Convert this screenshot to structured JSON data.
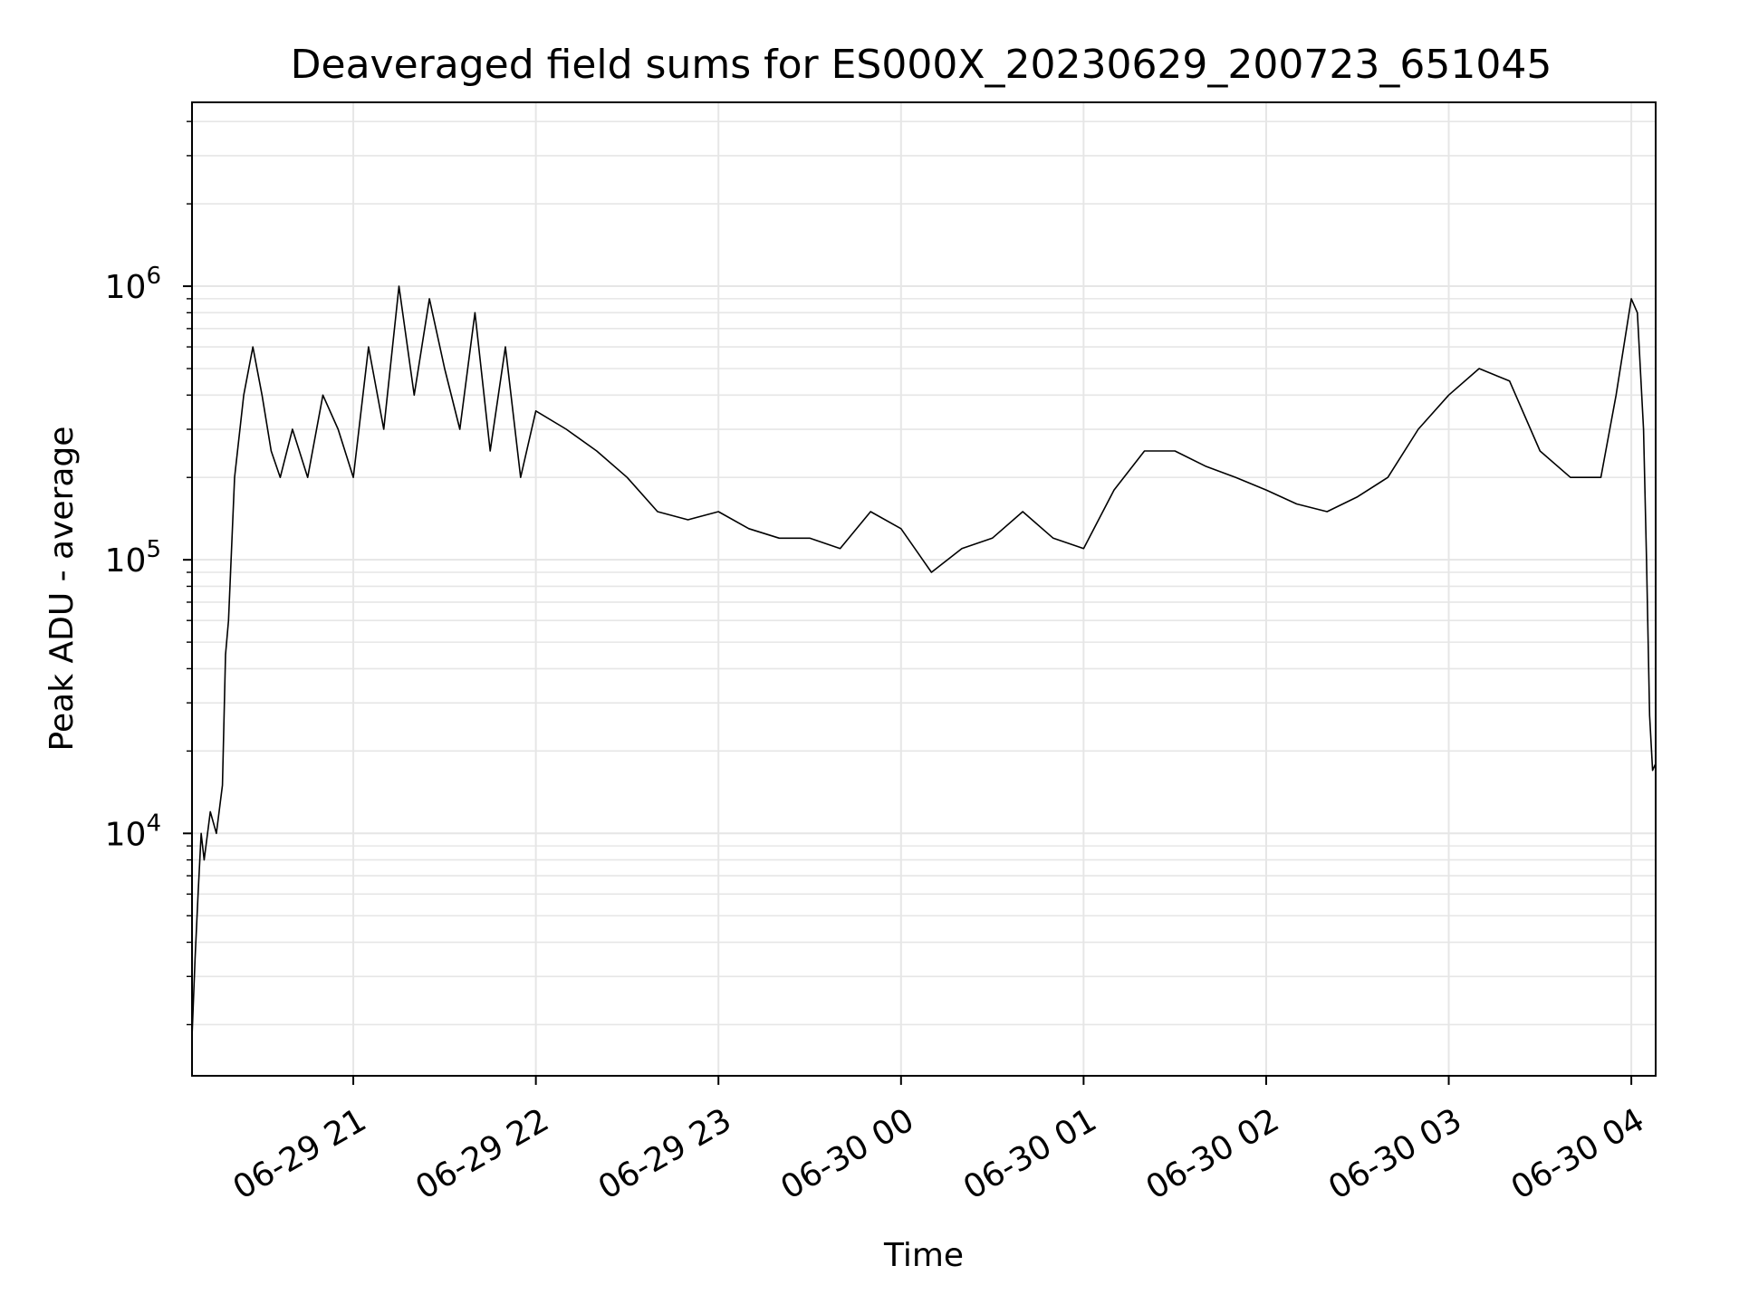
{
  "chart_data": {
    "type": "line",
    "title": "Deaveraged field sums for ES000X_20230629_200723_651045",
    "xlabel": "Time",
    "ylabel": "Peak ADU - average",
    "y_scale": "log",
    "ylim": [
      1300,
      4700000
    ],
    "xlim": [
      "2023-06-29 20:07",
      "2023-06-30 04:08"
    ],
    "x_ticks": [
      {
        "value": "2023-06-29 21:00",
        "label": "06-29 21"
      },
      {
        "value": "2023-06-29 22:00",
        "label": "06-29 22"
      },
      {
        "value": "2023-06-29 23:00",
        "label": "06-29 23"
      },
      {
        "value": "2023-06-30 00:00",
        "label": "06-30 00"
      },
      {
        "value": "2023-06-30 01:00",
        "label": "06-30 01"
      },
      {
        "value": "2023-06-30 02:00",
        "label": "06-30 02"
      },
      {
        "value": "2023-06-30 03:00",
        "label": "06-30 03"
      },
      {
        "value": "2023-06-30 04:00",
        "label": "06-30 04"
      }
    ],
    "y_ticks": [
      {
        "value": 10000,
        "base": "10",
        "exp": "4"
      },
      {
        "value": 100000,
        "base": "10",
        "exp": "5"
      },
      {
        "value": 1000000,
        "base": "10",
        "exp": "6"
      }
    ],
    "grid": true,
    "line_color": "#000000",
    "series": [
      {
        "x": [
          "2023-06-29 20:07",
          "2023-06-29 20:08",
          "2023-06-29 20:09",
          "2023-06-29 20:10",
          "2023-06-29 20:11",
          "2023-06-29 20:13",
          "2023-06-29 20:15",
          "2023-06-29 20:17",
          "2023-06-29 20:18",
          "2023-06-29 20:19",
          "2023-06-29 20:21",
          "2023-06-29 20:24",
          "2023-06-29 20:27",
          "2023-06-29 20:30",
          "2023-06-29 20:33",
          "2023-06-29 20:36",
          "2023-06-29 20:40",
          "2023-06-29 20:45",
          "2023-06-29 20:50",
          "2023-06-29 20:55",
          "2023-06-29 21:00",
          "2023-06-29 21:05",
          "2023-06-29 21:10",
          "2023-06-29 21:15",
          "2023-06-29 21:20",
          "2023-06-29 21:25",
          "2023-06-29 21:30",
          "2023-06-29 21:35",
          "2023-06-29 21:40",
          "2023-06-29 21:45",
          "2023-06-29 21:50",
          "2023-06-29 21:55",
          "2023-06-29 22:00",
          "2023-06-29 22:10",
          "2023-06-29 22:20",
          "2023-06-29 22:30",
          "2023-06-29 22:40",
          "2023-06-29 22:50",
          "2023-06-29 23:00",
          "2023-06-29 23:10",
          "2023-06-29 23:20",
          "2023-06-29 23:30",
          "2023-06-29 23:40",
          "2023-06-29 23:50",
          "2023-06-30 00:00",
          "2023-06-30 00:10",
          "2023-06-30 00:20",
          "2023-06-30 00:30",
          "2023-06-30 00:40",
          "2023-06-30 00:50",
          "2023-06-30 01:00",
          "2023-06-30 01:10",
          "2023-06-30 01:20",
          "2023-06-30 01:30",
          "2023-06-30 01:40",
          "2023-06-30 01:50",
          "2023-06-30 02:00",
          "2023-06-30 02:10",
          "2023-06-30 02:20",
          "2023-06-30 02:30",
          "2023-06-30 02:40",
          "2023-06-30 02:50",
          "2023-06-30 03:00",
          "2023-06-30 03:10",
          "2023-06-30 03:20",
          "2023-06-30 03:30",
          "2023-06-30 03:40",
          "2023-06-30 03:50",
          "2023-06-30 03:55",
          "2023-06-30 04:00",
          "2023-06-30 04:02",
          "2023-06-30 04:04",
          "2023-06-30 04:05",
          "2023-06-30 04:06",
          "2023-06-30 04:07",
          "2023-06-30 04:08"
        ],
        "y": [
          1800,
          3500,
          6000,
          10000,
          8000,
          12000,
          10000,
          15000,
          45000,
          60000,
          200000,
          400000,
          600000,
          400000,
          250000,
          200000,
          300000,
          200000,
          400000,
          300000,
          200000,
          600000,
          300000,
          1000000,
          400000,
          900000,
          500000,
          300000,
          800000,
          250000,
          600000,
          200000,
          350000,
          300000,
          250000,
          200000,
          150000,
          140000,
          150000,
          130000,
          120000,
          120000,
          110000,
          150000,
          130000,
          90000,
          110000,
          120000,
          150000,
          120000,
          110000,
          180000,
          250000,
          250000,
          220000,
          200000,
          180000,
          160000,
          150000,
          170000,
          200000,
          300000,
          400000,
          500000,
          450000,
          250000,
          200000,
          200000,
          400000,
          900000,
          800000,
          300000,
          100000,
          27000,
          17000,
          18000
        ]
      }
    ]
  }
}
